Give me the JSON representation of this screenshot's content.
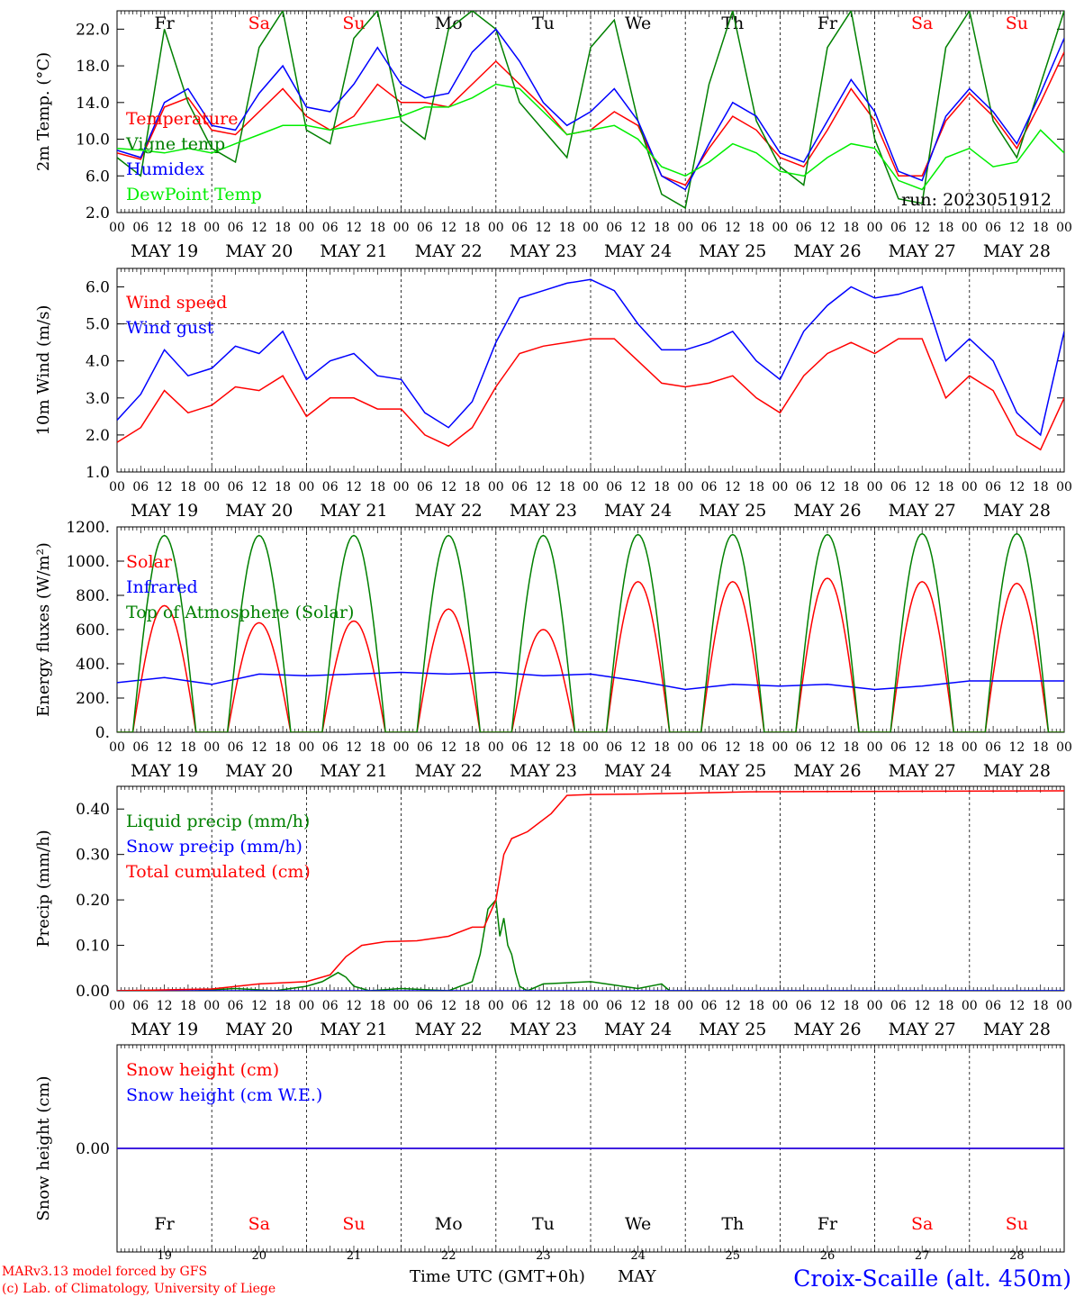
{
  "days": [
    "Fr",
    "Sa",
    "Su",
    "Mo",
    "Tu",
    "We",
    "Th",
    "Fr",
    "Sa",
    "Su"
  ],
  "day_colors": [
    "#000000",
    "#ff0000",
    "#ff0000",
    "#000000",
    "#000000",
    "#000000",
    "#000000",
    "#000000",
    "#ff0000",
    "#ff0000"
  ],
  "dates": [
    "MAY 19",
    "MAY 20",
    "MAY 21",
    "MAY 22",
    "MAY 23",
    "MAY 24",
    "MAY 25",
    "MAY 26",
    "MAY 27",
    "MAY 28"
  ],
  "day_numbers": [
    "19",
    "20",
    "21",
    "22",
    "23",
    "24",
    "25",
    "26",
    "27",
    "28"
  ],
  "hour_ticks": [
    "00",
    "06",
    "12",
    "18"
  ],
  "run_label": "run: 2023051912",
  "footer": {
    "credit1": "MARv3.13 model forced by GFS",
    "credit2": "(c) Lab. of Climatology, University of Liege",
    "xlabel": "Time UTC (GMT+0h)",
    "month": "MAY",
    "station": "Croix-Scaille (alt. 450m)"
  },
  "chart_data": [
    {
      "type": "line",
      "ylabel": "2m Temp. (°C)",
      "ylim": [
        2,
        24
      ],
      "yticks": [
        "2.0",
        "6.0",
        "10.0",
        "14.0",
        "18.0",
        "22.0"
      ],
      "ytick_values": [
        2,
        6,
        10,
        14,
        18,
        22
      ],
      "grid": false,
      "legend": "top-left",
      "x_unit": "hours from MAY 19 00 UTC",
      "series": [
        {
          "name": "Temperature",
          "color": "#ff0000",
          "x": [
            0,
            6,
            12,
            18,
            24,
            30,
            36,
            42,
            48,
            54,
            60,
            66,
            72,
            78,
            84,
            90,
            96,
            102,
            108,
            114,
            120,
            126,
            132,
            138,
            144,
            150,
            156,
            162,
            168,
            174,
            180,
            186,
            192,
            198,
            204,
            210,
            216,
            222,
            228,
            234,
            240
          ],
          "y": [
            8.5,
            7.8,
            13.5,
            14.5,
            11.0,
            10.5,
            13.0,
            15.5,
            12.5,
            11.0,
            12.5,
            16.0,
            14.0,
            14.0,
            13.5,
            16.0,
            18.5,
            16.0,
            13.5,
            10.5,
            11.0,
            13.0,
            11.5,
            6.0,
            5.0,
            9.0,
            12.5,
            11.0,
            8.0,
            7.0,
            11.0,
            15.5,
            12.0,
            6.0,
            6.0,
            12.0,
            15.0,
            12.5,
            9.0,
            14.0,
            19.5
          ]
        },
        {
          "name": "Vigne temp",
          "color": "#008000",
          "x": [
            0,
            6,
            12,
            18,
            24,
            30,
            36,
            42,
            48,
            54,
            60,
            66,
            72,
            78,
            84,
            90,
            96,
            102,
            108,
            114,
            120,
            126,
            132,
            138,
            144,
            150,
            156,
            162,
            168,
            174,
            180,
            186,
            192,
            198,
            204,
            210,
            216,
            222,
            228,
            234,
            240
          ],
          "y": [
            8.0,
            6.0,
            22.0,
            14.0,
            9.0,
            7.5,
            20.0,
            24.0,
            11.0,
            9.5,
            21.0,
            24.0,
            12.0,
            10.0,
            22.0,
            24.0,
            22.0,
            14.0,
            11.0,
            8.0,
            20.0,
            23.0,
            12.0,
            4.0,
            2.5,
            16.0,
            24.0,
            12.0,
            7.0,
            5.0,
            20.0,
            24.0,
            10.0,
            3.5,
            3.0,
            20.0,
            24.0,
            12.0,
            8.0,
            16.0,
            24.0
          ]
        },
        {
          "name": "Humidex",
          "color": "#0000ff",
          "x": [
            0,
            6,
            12,
            18,
            24,
            30,
            36,
            42,
            48,
            54,
            60,
            66,
            72,
            78,
            84,
            90,
            96,
            102,
            108,
            114,
            120,
            126,
            132,
            138,
            144,
            150,
            156,
            162,
            168,
            174,
            180,
            186,
            192,
            198,
            204,
            210,
            216,
            222,
            228,
            234,
            240
          ],
          "y": [
            8.8,
            8.0,
            14.0,
            15.5,
            11.5,
            11.0,
            15.0,
            18.0,
            13.5,
            13.0,
            16.0,
            20.0,
            16.0,
            14.5,
            15.0,
            19.5,
            22.0,
            18.5,
            14.0,
            11.5,
            13.0,
            15.5,
            12.0,
            6.0,
            4.5,
            9.5,
            14.0,
            12.5,
            8.5,
            7.5,
            12.0,
            16.5,
            13.0,
            6.5,
            5.5,
            12.5,
            15.5,
            13.0,
            9.5,
            15.0,
            21.0
          ]
        },
        {
          "name": "DewPoint Temp",
          "color": "#00ee00",
          "x": [
            0,
            6,
            12,
            18,
            24,
            30,
            36,
            42,
            48,
            54,
            60,
            66,
            72,
            78,
            84,
            90,
            96,
            102,
            108,
            114,
            120,
            126,
            132,
            138,
            144,
            150,
            156,
            162,
            168,
            174,
            180,
            186,
            192,
            198,
            204,
            210,
            216,
            222,
            228,
            234,
            240
          ],
          "y": [
            9.0,
            8.8,
            8.5,
            9.0,
            8.5,
            9.5,
            10.5,
            11.5,
            11.5,
            11.0,
            11.5,
            12.0,
            12.5,
            13.5,
            13.5,
            14.5,
            16.0,
            15.5,
            13.0,
            10.5,
            11.0,
            11.5,
            10.0,
            7.0,
            6.0,
            7.5,
            9.5,
            8.5,
            6.5,
            6.0,
            8.0,
            9.5,
            9.0,
            5.5,
            4.5,
            8.0,
            9.0,
            7.0,
            7.5,
            11.0,
            8.5
          ]
        }
      ]
    },
    {
      "type": "line",
      "ylabel": "10m Wind (m/s)",
      "ylim": [
        1,
        6.5
      ],
      "yticks": [
        "1.0",
        "2.0",
        "3.0",
        "4.0",
        "5.0",
        "6.0"
      ],
      "ytick_values": [
        1,
        2,
        3,
        4,
        5,
        6
      ],
      "hline": 5.0,
      "grid": false,
      "legend": "top-left",
      "x_unit": "hours from MAY 19 00 UTC",
      "series": [
        {
          "name": "Wind speed",
          "color": "#ff0000",
          "x": [
            0,
            6,
            12,
            18,
            24,
            30,
            36,
            42,
            48,
            54,
            60,
            66,
            72,
            78,
            84,
            90,
            96,
            102,
            108,
            114,
            120,
            126,
            132,
            138,
            144,
            150,
            156,
            162,
            168,
            174,
            180,
            186,
            192,
            198,
            204,
            210,
            216,
            222,
            228,
            234,
            240
          ],
          "y": [
            1.8,
            2.2,
            3.2,
            2.6,
            2.8,
            3.3,
            3.2,
            3.6,
            2.5,
            3.0,
            3.0,
            2.7,
            2.7,
            2.0,
            1.7,
            2.2,
            3.3,
            4.2,
            4.4,
            4.5,
            4.6,
            4.6,
            4.0,
            3.4,
            3.3,
            3.4,
            3.6,
            3.0,
            2.6,
            3.6,
            4.2,
            4.5,
            4.2,
            4.6,
            4.6,
            3.0,
            3.6,
            3.2,
            2.0,
            1.6,
            3.0
          ]
        },
        {
          "name": "Wind gust",
          "color": "#0000ff",
          "x": [
            0,
            6,
            12,
            18,
            24,
            30,
            36,
            42,
            48,
            54,
            60,
            66,
            72,
            78,
            84,
            90,
            96,
            102,
            108,
            114,
            120,
            126,
            132,
            138,
            144,
            150,
            156,
            162,
            168,
            174,
            180,
            186,
            192,
            198,
            204,
            210,
            216,
            222,
            228,
            234,
            240
          ],
          "y": [
            2.4,
            3.1,
            4.3,
            3.6,
            3.8,
            4.4,
            4.2,
            4.8,
            3.5,
            4.0,
            4.2,
            3.6,
            3.5,
            2.6,
            2.2,
            2.9,
            4.5,
            5.7,
            5.9,
            6.1,
            6.2,
            5.9,
            5.0,
            4.3,
            4.3,
            4.5,
            4.8,
            4.0,
            3.5,
            4.8,
            5.5,
            6.0,
            5.7,
            5.8,
            6.0,
            4.0,
            4.6,
            4.0,
            2.6,
            2.0,
            4.8
          ]
        }
      ]
    },
    {
      "type": "line",
      "ylabel": "Energy fluxes (W/m²)",
      "ylim": [
        0,
        1200
      ],
      "yticks": [
        "0.",
        "200.",
        "400.",
        "600.",
        "800.",
        "1000.",
        "1200."
      ],
      "ytick_values": [
        0,
        200,
        400,
        600,
        800,
        1000,
        1200
      ],
      "grid": false,
      "legend": "top-left",
      "x_unit": "hours from MAY 19 00 UTC",
      "daylight": {
        "sunrise_hour": 4.0,
        "sunset_hour": 20.0
      },
      "series": [
        {
          "name": "Solar",
          "color": "#ff0000",
          "daily_peaks": [
            740,
            640,
            650,
            720,
            600,
            880,
            880,
            900,
            880,
            870
          ]
        },
        {
          "name": "Infrared",
          "color": "#0000ff",
          "x": [
            0,
            12,
            24,
            36,
            48,
            60,
            72,
            84,
            96,
            108,
            120,
            132,
            144,
            156,
            168,
            180,
            192,
            204,
            216,
            228,
            240
          ],
          "y": [
            290,
            320,
            280,
            340,
            330,
            340,
            350,
            340,
            350,
            330,
            340,
            300,
            250,
            280,
            270,
            280,
            250,
            270,
            300,
            300,
            300
          ]
        },
        {
          "name": "Top of Atmosphere (Solar)",
          "color": "#008000",
          "daily_peaks": [
            1150,
            1150,
            1150,
            1150,
            1150,
            1155,
            1155,
            1155,
            1160,
            1160
          ]
        }
      ]
    },
    {
      "type": "line",
      "ylabel": "Precip (mm/h)",
      "ylim": [
        0,
        0.45
      ],
      "yticks": [
        "0.00",
        "0.10",
        "0.20",
        "0.30",
        "0.40"
      ],
      "ytick_values": [
        0,
        0.1,
        0.2,
        0.3,
        0.4
      ],
      "grid": false,
      "legend": "top-left",
      "x_unit": "hours from MAY 19 00 UTC",
      "series": [
        {
          "name": "Liquid precip (mm/h)",
          "color": "#008000",
          "x": [
            0,
            20,
            30,
            40,
            48,
            52,
            56,
            58,
            60,
            64,
            72,
            84,
            90,
            92,
            94,
            96,
            97,
            98,
            99,
            100,
            101,
            102,
            104,
            108,
            120,
            132,
            138,
            140,
            144,
            240
          ],
          "y": [
            0,
            0,
            0.005,
            0,
            0.01,
            0.02,
            0.04,
            0.03,
            0.01,
            0,
            0.005,
            0,
            0.02,
            0.08,
            0.18,
            0.2,
            0.12,
            0.16,
            0.1,
            0.08,
            0.04,
            0.01,
            0,
            0.015,
            0.02,
            0.005,
            0.015,
            0,
            0,
            0
          ]
        },
        {
          "name": "Snow precip (mm/h)",
          "color": "#0000ff",
          "x": [
            0,
            240
          ],
          "y": [
            0,
            0
          ]
        },
        {
          "name": "Total cumulated (cm)",
          "color": "#ff0000",
          "x": [
            0,
            12,
            24,
            36,
            48,
            54,
            58,
            62,
            68,
            76,
            84,
            90,
            93,
            96,
            98,
            100,
            104,
            110,
            114,
            120,
            132,
            144,
            160,
            240
          ],
          "y": [
            0,
            0.002,
            0.004,
            0.015,
            0.02,
            0.035,
            0.075,
            0.1,
            0.108,
            0.11,
            0.12,
            0.14,
            0.14,
            0.2,
            0.3,
            0.335,
            0.35,
            0.39,
            0.43,
            0.432,
            0.433,
            0.435,
            0.438,
            0.44
          ]
        }
      ]
    },
    {
      "type": "line",
      "ylabel": "Snow height (cm)",
      "yticks": [
        "0.00"
      ],
      "ytick_values": [
        0
      ],
      "grid": false,
      "legend": "top-left",
      "series": [
        {
          "name": "Snow height (cm)",
          "color": "#ff0000",
          "x": [
            0,
            240
          ],
          "y": [
            0,
            0
          ]
        },
        {
          "name": "Snow height (cm W.E.)",
          "color": "#0000ff",
          "x": [
            0,
            240
          ],
          "y": [
            0,
            0
          ]
        }
      ]
    }
  ]
}
